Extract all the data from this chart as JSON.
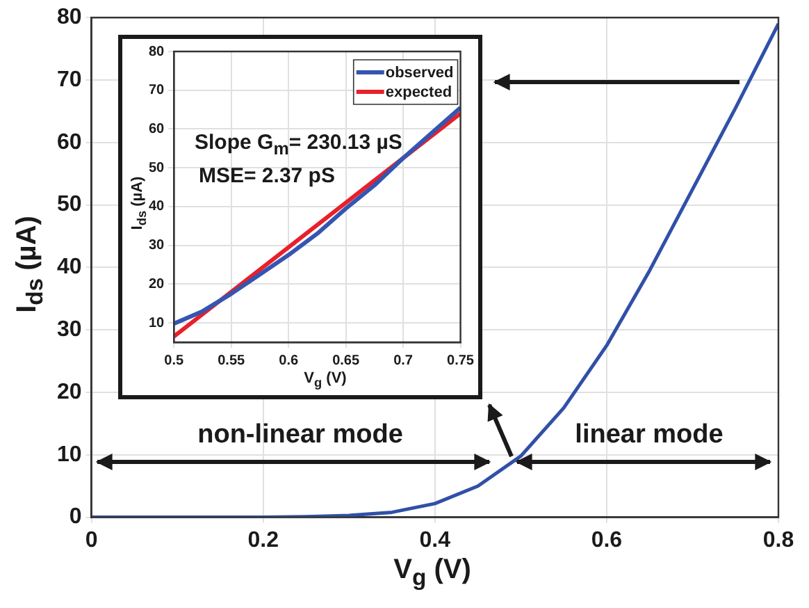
{
  "chart_data": [
    {
      "type": "line",
      "xlabel": "V$_{g}$ (V)",
      "ylabel": "I$_{ds}$ (µA)",
      "xlim": [
        0,
        0.8
      ],
      "ylim": [
        0,
        80
      ],
      "xticks": [
        0,
        0.2,
        0.4,
        0.6,
        0.8
      ],
      "yticks": [
        0,
        10,
        20,
        30,
        40,
        50,
        60,
        70,
        80
      ],
      "grid": true,
      "marker": "none",
      "series": [
        {
          "color": "#3050a8",
          "x": [
            0,
            0.1,
            0.2,
            0.25,
            0.3,
            0.35,
            0.4,
            0.45,
            0.5,
            0.55,
            0.6,
            0.65,
            0.7,
            0.75,
            0.8
          ],
          "values": [
            0,
            0,
            0,
            0.1,
            0.3,
            0.8,
            2.2,
            5,
            9.8,
            17.5,
            27.5,
            39.5,
            52.5,
            65.5,
            79
          ]
        }
      ],
      "annotations": [
        "non-linear mode",
        "linear mode"
      ]
    },
    {
      "type": "line",
      "xlabel": "V$_{g}$ (V)",
      "ylabel": "I$_{ds}$ (µA)",
      "xlim": [
        0.5,
        0.75
      ],
      "ylim": [
        5,
        80
      ],
      "xticks": [
        0.5,
        0.55,
        0.6,
        0.65,
        0.7,
        0.75
      ],
      "yticks": [
        10,
        20,
        30,
        40,
        50,
        60,
        70,
        80
      ],
      "grid": true,
      "legend": "top right",
      "marker": "none",
      "series": [
        {
          "name": "observed",
          "color": "#3555b0",
          "x": [
            0.5,
            0.525,
            0.55,
            0.575,
            0.6,
            0.625,
            0.65,
            0.675,
            0.7,
            0.725,
            0.75
          ],
          "values": [
            9.8,
            13,
            17.5,
            22.5,
            27.5,
            33,
            39.5,
            45.5,
            52.5,
            59,
            65.5
          ]
        },
        {
          "name": "expected",
          "color": "#e8202a",
          "x": [
            0.5,
            0.75
          ],
          "values": [
            6.5,
            64
          ]
        }
      ],
      "annotations": [
        "Slope G$_{m}$= 230.13 µS",
        "MSE= 2.37 pS"
      ]
    }
  ]
}
